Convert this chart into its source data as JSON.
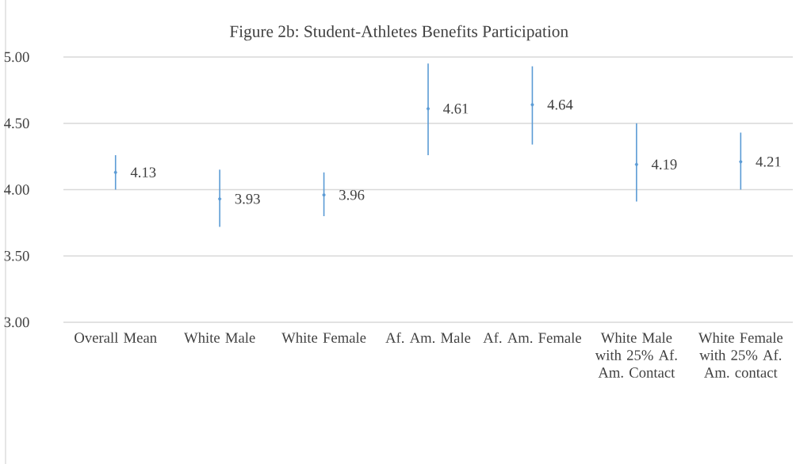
{
  "chart_data": {
    "type": "scatter",
    "title": "Figure 2b: Student-Athletes Benefits Participation",
    "categories": [
      "Overall Mean",
      "White Male",
      "White Female",
      "Af. Am. Male",
      "Af. Am. Female",
      "White Male with 25% Af. Am. Contact",
      "White Female with 25% Af. Am. contact"
    ],
    "values": [
      4.13,
      3.93,
      3.96,
      4.61,
      4.64,
      4.19,
      4.21
    ],
    "errors": [
      [
        4.0,
        4.26
      ],
      [
        3.72,
        4.15
      ],
      [
        3.8,
        4.13
      ],
      [
        4.26,
        4.95
      ],
      [
        4.34,
        4.93
      ],
      [
        3.91,
        4.5
      ],
      [
        4.0,
        4.43
      ]
    ],
    "color": "#5b9bd5",
    "marker": "circle",
    "data_labels": true,
    "grid": "y",
    "ylim": [
      3,
      5
    ],
    "yticks": [
      {
        "value": 3,
        "label": "3.00"
      },
      {
        "value": 3.5,
        "label": "3.50"
      },
      {
        "value": 4,
        "label": "4.00"
      },
      {
        "value": 4.5,
        "label": "4.50"
      },
      {
        "value": 5,
        "label": "5.00"
      }
    ]
  }
}
